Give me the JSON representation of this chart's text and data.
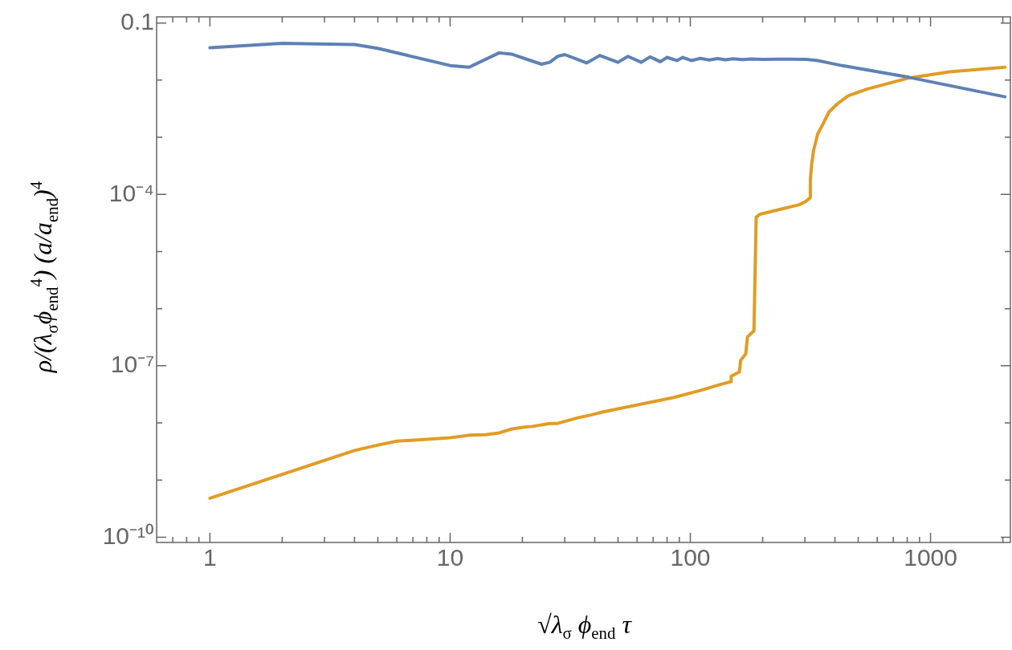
{
  "chart_data": {
    "type": "line",
    "xlabel": "√λ$_{σ}$ ϕ$_{end}$ τ",
    "ylabel": "ρ/(λ$_{σ}$ϕ$_{end}$$^{4}$) (a/a$_{end}$)$^{4}$",
    "log": "xy",
    "xlim": [
      0.61,
      2150
    ],
    "ylim": [
      8.1e-11,
      0.128
    ],
    "xticks": [
      {
        "value": 0.7,
        "label": null
      },
      {
        "value": 0.8,
        "label": null
      },
      {
        "value": 0.9,
        "label": null
      },
      1,
      {
        "value": 2,
        "label": null
      },
      {
        "value": 3,
        "label": null
      },
      {
        "value": 4,
        "label": null
      },
      {
        "value": 5,
        "label": null
      },
      {
        "value": 6,
        "label": null
      },
      {
        "value": 7,
        "label": null
      },
      {
        "value": 8,
        "label": null
      },
      {
        "value": 9,
        "label": null
      },
      10,
      {
        "value": 20,
        "label": null
      },
      {
        "value": 30,
        "label": null
      },
      {
        "value": 40,
        "label": null
      },
      {
        "value": 50,
        "label": null
      },
      {
        "value": 60,
        "label": null
      },
      {
        "value": 70,
        "label": null
      },
      {
        "value": 80,
        "label": null
      },
      {
        "value": 90,
        "label": null
      },
      100,
      {
        "value": 200,
        "label": null
      },
      {
        "value": 300,
        "label": null
      },
      {
        "value": 400,
        "label": null
      },
      {
        "value": 500,
        "label": null
      },
      {
        "value": 600,
        "label": null
      },
      {
        "value": 700,
        "label": null
      },
      {
        "value": 800,
        "label": null
      },
      {
        "value": 900,
        "label": null
      },
      1000,
      {
        "value": 2000,
        "label": null
      }
    ],
    "yticks": [
      {
        "value": 1e-10,
        "label": "10⁻¹⁰"
      },
      {
        "value": 1e-09,
        "label": null
      },
      {
        "value": 1e-08,
        "label": null
      },
      {
        "value": 1e-07,
        "label": "10⁻⁷"
      },
      {
        "value": 1e-06,
        "label": null
      },
      {
        "value": 1e-05,
        "label": null
      },
      {
        "value": 0.0001,
        "label": "10⁻⁴"
      },
      {
        "value": 0.001,
        "label": null
      },
      {
        "value": 0.01,
        "label": null
      },
      0.1
    ],
    "series": [
      {
        "color": "#5e81b5",
        "x": [
          1,
          2,
          4,
          5,
          10,
          12,
          16,
          18,
          24,
          26,
          28,
          30,
          37,
          42,
          50,
          55,
          62.5,
          68,
          75,
          80,
          88,
          93,
          101,
          110,
          120,
          130,
          140,
          150,
          165,
          180,
          200,
          230,
          260,
          305,
          340,
          367,
          430,
          813,
          2040
        ],
        "values": [
          0.037,
          0.044,
          0.042,
          0.036,
          0.018,
          0.0168,
          0.03,
          0.0285,
          0.019,
          0.0205,
          0.026,
          0.028,
          0.02,
          0.027,
          0.0205,
          0.026,
          0.0205,
          0.0255,
          0.021,
          0.025,
          0.022,
          0.025,
          0.022,
          0.024,
          0.0225,
          0.0238,
          0.0227,
          0.0236,
          0.0229,
          0.0234,
          0.023,
          0.0233,
          0.0232,
          0.023,
          0.022,
          0.0205,
          0.0179,
          0.0112,
          0.0051
        ]
      },
      {
        "color": "#e19c24",
        "x": [
          1,
          4,
          5,
          6,
          10,
          12,
          14,
          16,
          18,
          20,
          22,
          26,
          28,
          34,
          38.5,
          43,
          85.5,
          110,
          135,
          148,
          148,
          160,
          162,
          170,
          173,
          184,
          188,
          195,
          284,
          302,
          316,
          316,
          320,
          326,
          339,
          358,
          377,
          408,
          454,
          546,
          813,
          1200,
          2040
        ],
        "values": [
          4.8e-10,
          3.3e-09,
          4.1e-09,
          4.8e-09,
          5.5e-09,
          6.1e-09,
          6.2e-09,
          6.7e-09,
          7.8e-09,
          8.4e-09,
          8.7e-09,
          9.8e-09,
          9.8e-09,
          1.23e-08,
          1.38e-08,
          1.55e-08,
          2.8e-08,
          3.7e-08,
          4.8e-08,
          5.3e-08,
          6.6e-08,
          7.8e-08,
          1.25e-07,
          1.6e-07,
          3.2e-07,
          4.1e-07,
          4e-05,
          4.5e-05,
          6.6e-05,
          7.5e-05,
          8.8e-05,
          0.00018,
          0.00034,
          0.00059,
          0.00114,
          0.00176,
          0.00275,
          0.0038,
          0.0053,
          0.007,
          0.0109,
          0.014,
          0.0168
        ]
      }
    ]
  }
}
